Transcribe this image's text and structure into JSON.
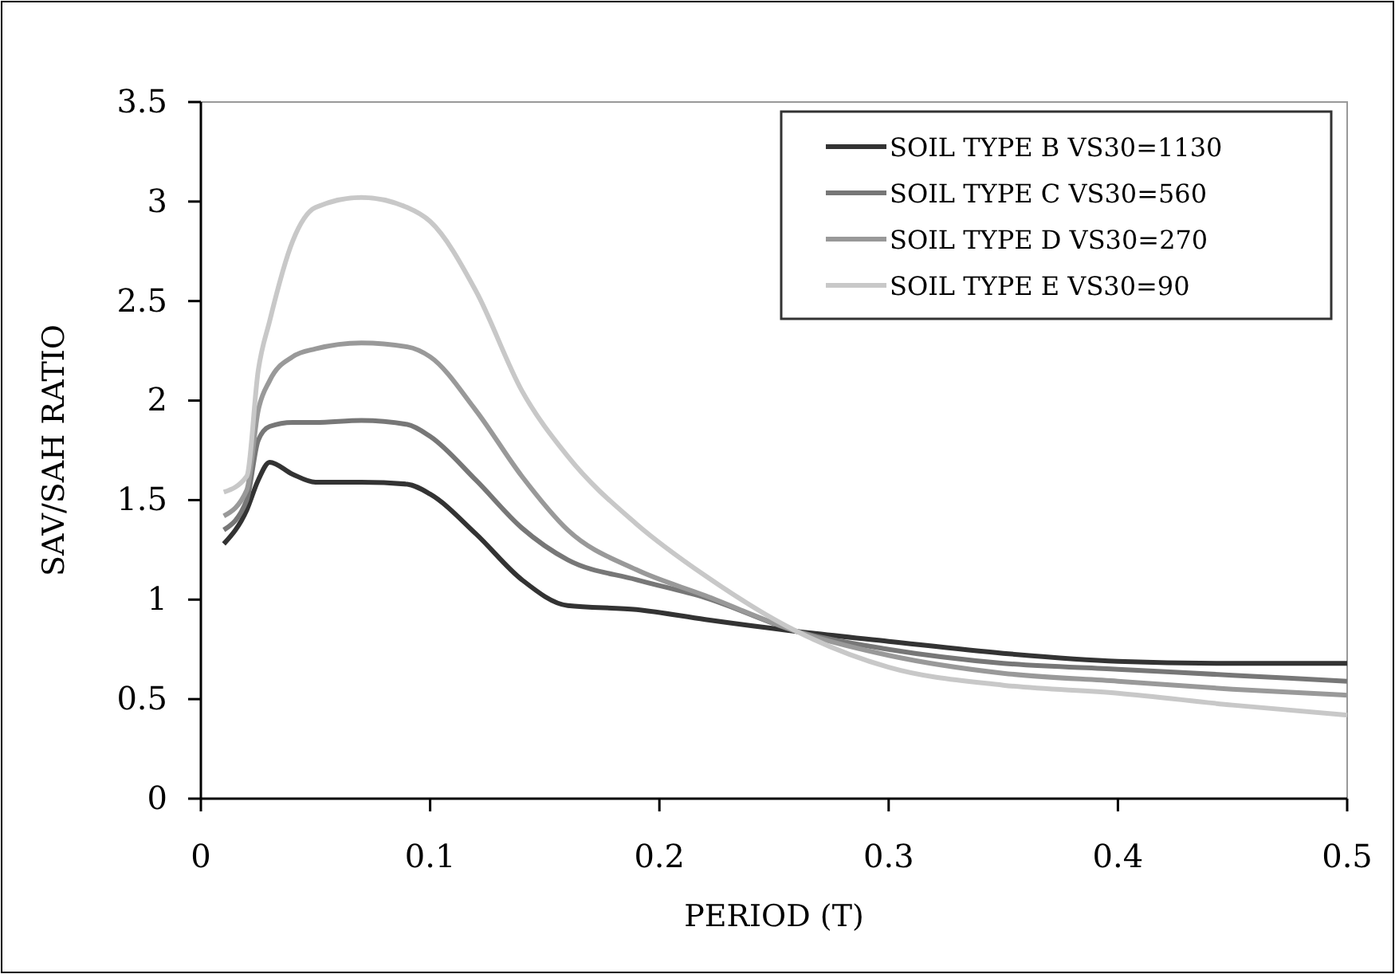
{
  "chart_data": {
    "type": "line",
    "xlabel": "PERIOD (T)",
    "ylabel": "SAV/SAH RATIO",
    "xlim": [
      0,
      0.5
    ],
    "xticks": [
      0,
      0.1,
      0.2,
      0.3,
      0.4,
      0.5
    ],
    "ylim": [
      0,
      3.5
    ],
    "yticks": [
      0,
      0.5,
      1,
      1.5,
      2,
      2.5,
      3,
      3.5
    ],
    "legend": "top right",
    "grid": false,
    "marker": "none",
    "line_style": "solid",
    "x": [
      0.01,
      0.02,
      0.025,
      0.03,
      0.04,
      0.05,
      0.07,
      0.09,
      0.1,
      0.12,
      0.14,
      0.16,
      0.19,
      0.22,
      0.26,
      0.3,
      0.35,
      0.4,
      0.45,
      0.5
    ],
    "series": [
      {
        "name": "SOIL TYPE B VS30=1130",
        "color": "#333333",
        "values": [
          1.28,
          1.45,
          1.6,
          1.69,
          1.63,
          1.59,
          1.59,
          1.58,
          1.53,
          1.33,
          1.1,
          0.97,
          0.95,
          0.9,
          0.84,
          0.79,
          0.73,
          0.69,
          0.68,
          0.68
        ]
      },
      {
        "name": "SOIL TYPE C VS30=560",
        "color": "#777777",
        "values": [
          1.35,
          1.5,
          1.8,
          1.87,
          1.89,
          1.89,
          1.9,
          1.88,
          1.82,
          1.6,
          1.36,
          1.2,
          1.1,
          1.01,
          0.84,
          0.75,
          0.68,
          0.65,
          0.62,
          0.59
        ]
      },
      {
        "name": "SOIL TYPE D VS30=270",
        "color": "#999999",
        "values": [
          1.42,
          1.55,
          1.95,
          2.1,
          2.22,
          2.26,
          2.29,
          2.27,
          2.22,
          1.95,
          1.62,
          1.35,
          1.15,
          1.02,
          0.84,
          0.72,
          0.63,
          0.59,
          0.55,
          0.52
        ]
      },
      {
        "name": "SOIL TYPE E VS30=90",
        "color": "#c8c8c8",
        "values": [
          1.54,
          1.62,
          2.15,
          2.4,
          2.8,
          2.97,
          3.02,
          2.97,
          2.9,
          2.55,
          2.05,
          1.72,
          1.38,
          1.12,
          0.84,
          0.66,
          0.57,
          0.53,
          0.47,
          0.42
        ]
      }
    ]
  }
}
